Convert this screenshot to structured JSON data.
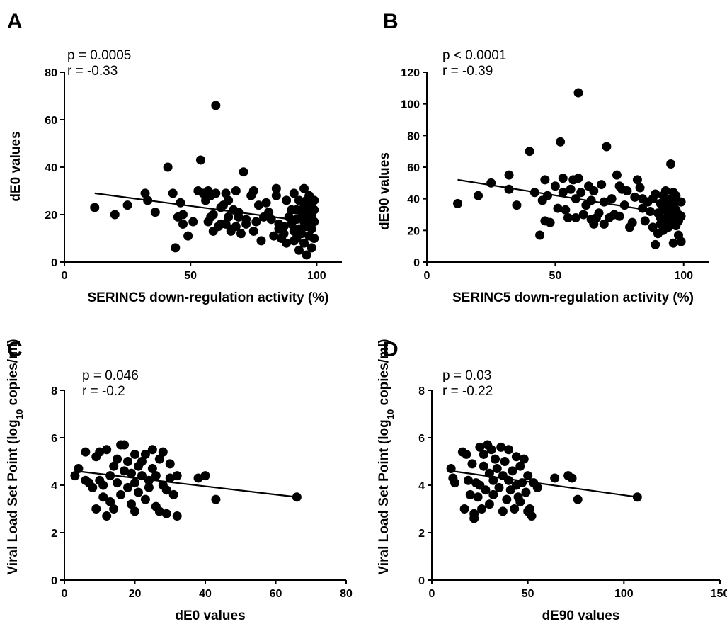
{
  "chart_data": [
    {
      "panel": "A",
      "type": "scatter",
      "stats": {
        "p": "p = 0.0005",
        "r": "r = -0.33"
      },
      "xlabel": "SERINC5 down-regulation activity (%)",
      "ylabel": "dE0 values",
      "xlim": [
        0,
        110
      ],
      "ylim": [
        0,
        80
      ],
      "xticks": [
        0,
        50,
        100
      ],
      "yticks": [
        0,
        20,
        40,
        60,
        80
      ],
      "trend": [
        [
          12,
          29
        ],
        [
          97,
          17
        ]
      ],
      "points": [
        [
          12,
          23
        ],
        [
          20,
          20
        ],
        [
          25,
          24
        ],
        [
          32,
          29
        ],
        [
          33,
          26
        ],
        [
          36,
          21
        ],
        [
          41,
          40
        ],
        [
          43,
          29
        ],
        [
          44,
          6
        ],
        [
          45,
          19
        ],
        [
          46,
          25
        ],
        [
          47,
          16
        ],
        [
          47,
          20
        ],
        [
          49,
          11
        ],
        [
          51,
          17
        ],
        [
          53,
          30
        ],
        [
          54,
          43
        ],
        [
          55,
          29
        ],
        [
          56,
          26
        ],
        [
          57,
          17
        ],
        [
          57,
          30
        ],
        [
          58,
          28
        ],
        [
          58,
          19
        ],
        [
          59,
          13
        ],
        [
          59,
          20
        ],
        [
          60,
          66
        ],
        [
          60,
          29
        ],
        [
          61,
          15
        ],
        [
          62,
          23
        ],
        [
          62,
          16
        ],
        [
          63,
          24
        ],
        [
          64,
          16
        ],
        [
          64,
          29
        ],
        [
          65,
          26
        ],
        [
          65,
          19
        ],
        [
          66,
          13
        ],
        [
          66,
          14
        ],
        [
          67,
          22
        ],
        [
          68,
          30
        ],
        [
          68,
          15
        ],
        [
          69,
          21
        ],
        [
          69,
          19
        ],
        [
          70,
          12
        ],
        [
          71,
          38
        ],
        [
          72,
          18
        ],
        [
          72,
          16
        ],
        [
          74,
          28
        ],
        [
          75,
          30
        ],
        [
          75,
          13
        ],
        [
          76,
          17
        ],
        [
          77,
          24
        ],
        [
          78,
          9
        ],
        [
          79,
          19
        ],
        [
          80,
          25
        ],
        [
          81,
          21
        ],
        [
          82,
          18
        ],
        [
          83,
          11
        ],
        [
          84,
          31
        ],
        [
          84,
          28
        ],
        [
          85,
          16
        ],
        [
          85,
          14
        ],
        [
          86,
          10
        ],
        [
          87,
          15
        ],
        [
          87,
          12
        ],
        [
          88,
          8
        ],
        [
          88,
          26
        ],
        [
          89,
          19
        ],
        [
          90,
          16
        ],
        [
          90,
          22
        ],
        [
          91,
          13
        ],
        [
          91,
          9
        ],
        [
          91,
          29
        ],
        [
          92,
          22
        ],
        [
          92,
          18
        ],
        [
          92,
          10
        ],
        [
          93,
          26
        ],
        [
          93,
          5
        ],
        [
          93,
          14
        ],
        [
          94,
          22
        ],
        [
          94,
          19
        ],
        [
          94,
          12
        ],
        [
          95,
          31
        ],
        [
          95,
          17
        ],
        [
          95,
          23
        ],
        [
          95,
          8
        ],
        [
          96,
          26
        ],
        [
          96,
          21
        ],
        [
          96,
          15
        ],
        [
          96,
          3
        ],
        [
          97,
          28
        ],
        [
          97,
          18
        ],
        [
          97,
          11
        ],
        [
          97,
          24
        ],
        [
          98,
          20
        ],
        [
          98,
          14
        ],
        [
          98,
          6
        ],
        [
          99,
          22
        ],
        [
          99,
          17
        ],
        [
          99,
          10
        ],
        [
          99,
          26
        ]
      ]
    },
    {
      "panel": "B",
      "type": "scatter",
      "stats": {
        "p": "p < 0.0001",
        "r": "r = -0.39"
      },
      "xlabel": "SERINC5 down-regulation activity (%)",
      "ylabel": "dE90 values",
      "xlim": [
        0,
        110
      ],
      "ylim": [
        0,
        120
      ],
      "xticks": [
        0,
        50,
        100
      ],
      "yticks": [
        0,
        20,
        40,
        60,
        80,
        100,
        120
      ],
      "trend": [
        [
          12,
          52
        ],
        [
          97,
          30
        ]
      ],
      "points": [
        [
          12,
          37
        ],
        [
          20,
          42
        ],
        [
          25,
          50
        ],
        [
          32,
          55
        ],
        [
          32,
          46
        ],
        [
          35,
          36
        ],
        [
          40,
          70
        ],
        [
          42,
          44
        ],
        [
          44,
          17
        ],
        [
          45,
          39
        ],
        [
          46,
          52
        ],
        [
          46,
          26
        ],
        [
          47,
          42
        ],
        [
          48,
          25
        ],
        [
          50,
          48
        ],
        [
          51,
          34
        ],
        [
          52,
          76
        ],
        [
          53,
          53
        ],
        [
          53,
          44
        ],
        [
          54,
          33
        ],
        [
          55,
          28
        ],
        [
          56,
          46
        ],
        [
          57,
          52
        ],
        [
          58,
          40
        ],
        [
          58,
          28
        ],
        [
          59,
          107
        ],
        [
          59,
          53
        ],
        [
          60,
          44
        ],
        [
          61,
          30
        ],
        [
          62,
          36
        ],
        [
          63,
          48
        ],
        [
          64,
          27
        ],
        [
          64,
          39
        ],
        [
          65,
          45
        ],
        [
          65,
          24
        ],
        [
          66,
          28
        ],
        [
          67,
          31
        ],
        [
          68,
          49
        ],
        [
          69,
          38
        ],
        [
          69,
          24
        ],
        [
          70,
          73
        ],
        [
          71,
          28
        ],
        [
          72,
          40
        ],
        [
          73,
          30
        ],
        [
          74,
          55
        ],
        [
          75,
          48
        ],
        [
          75,
          29
        ],
        [
          76,
          46
        ],
        [
          77,
          36
        ],
        [
          78,
          45
        ],
        [
          79,
          22
        ],
        [
          80,
          25
        ],
        [
          81,
          41
        ],
        [
          82,
          52
        ],
        [
          83,
          47
        ],
        [
          84,
          34
        ],
        [
          84,
          40
        ],
        [
          85,
          26
        ],
        [
          86,
          38
        ],
        [
          87,
          32
        ],
        [
          88,
          40
        ],
        [
          88,
          22
        ],
        [
          89,
          11
        ],
        [
          89,
          43
        ],
        [
          90,
          31
        ],
        [
          90,
          18
        ],
        [
          91,
          28
        ],
        [
          91,
          24
        ],
        [
          91,
          37
        ],
        [
          92,
          42
        ],
        [
          92,
          33
        ],
        [
          92,
          20
        ],
        [
          93,
          38
        ],
        [
          93,
          27
        ],
        [
          93,
          45
        ],
        [
          94,
          35
        ],
        [
          94,
          29
        ],
        [
          94,
          22
        ],
        [
          95,
          62
        ],
        [
          95,
          40
        ],
        [
          95,
          31
        ],
        [
          95,
          24
        ],
        [
          96,
          44
        ],
        [
          96,
          35
        ],
        [
          96,
          28
        ],
        [
          96,
          12
        ],
        [
          97,
          42
        ],
        [
          97,
          33
        ],
        [
          97,
          23
        ],
        [
          97,
          38
        ],
        [
          98,
          30
        ],
        [
          98,
          26
        ],
        [
          98,
          17
        ],
        [
          99,
          38
        ],
        [
          99,
          29
        ],
        [
          99,
          13
        ]
      ]
    },
    {
      "panel": "C",
      "type": "scatter",
      "stats": {
        "p": "p = 0.046",
        "r": "r = -0.2"
      },
      "xlabel": "dE0 values",
      "ylabel": "Viral Load Set Point (log10 copies/ml)",
      "xlim": [
        0,
        80
      ],
      "ylim": [
        0,
        8
      ],
      "xticks": [
        0,
        20,
        40,
        60,
        80
      ],
      "yticks": [
        0,
        2,
        4,
        6,
        8
      ],
      "trend": [
        [
          3,
          4.6
        ],
        [
          66,
          3.5
        ]
      ],
      "points": [
        [
          3,
          4.4
        ],
        [
          4,
          4.7
        ],
        [
          6,
          5.4
        ],
        [
          6,
          4.2
        ],
        [
          7,
          4.1
        ],
        [
          8,
          3.9
        ],
        [
          9,
          5.2
        ],
        [
          9,
          3.0
        ],
        [
          10,
          4.2
        ],
        [
          10,
          5.4
        ],
        [
          11,
          4.0
        ],
        [
          11,
          3.5
        ],
        [
          12,
          2.7
        ],
        [
          12,
          5.5
        ],
        [
          13,
          4.4
        ],
        [
          13,
          3.3
        ],
        [
          14,
          4.8
        ],
        [
          14,
          3.0
        ],
        [
          15,
          5.1
        ],
        [
          15,
          4.1
        ],
        [
          16,
          5.7
        ],
        [
          16,
          3.6
        ],
        [
          17,
          4.6
        ],
        [
          17,
          5.7
        ],
        [
          18,
          3.9
        ],
        [
          18,
          5.0
        ],
        [
          19,
          4.5
        ],
        [
          19,
          3.2
        ],
        [
          20,
          5.3
        ],
        [
          20,
          4.1
        ],
        [
          20,
          2.9
        ],
        [
          21,
          4.8
        ],
        [
          21,
          3.7
        ],
        [
          22,
          5.0
        ],
        [
          22,
          4.4
        ],
        [
          23,
          3.4
        ],
        [
          23,
          5.3
        ],
        [
          24,
          4.2
        ],
        [
          24,
          3.9
        ],
        [
          25,
          5.5
        ],
        [
          25,
          4.7
        ],
        [
          26,
          3.1
        ],
        [
          26,
          4.4
        ],
        [
          27,
          5.1
        ],
        [
          27,
          2.9
        ],
        [
          28,
          4.0
        ],
        [
          28,
          5.4
        ],
        [
          29,
          3.8
        ],
        [
          29,
          2.8
        ],
        [
          30,
          4.3
        ],
        [
          30,
          4.9
        ],
        [
          31,
          3.6
        ],
        [
          32,
          2.7
        ],
        [
          32,
          4.4
        ],
        [
          38,
          4.3
        ],
        [
          40,
          4.4
        ],
        [
          43,
          3.4
        ],
        [
          66,
          3.5
        ]
      ]
    },
    {
      "panel": "D",
      "type": "scatter",
      "stats": {
        "p": "p = 0.03",
        "r": "r = -0.22"
      },
      "xlabel": "dE90 values",
      "ylabel": "Viral Load Set Point (log10 copies/ml)",
      "xlim": [
        0,
        150
      ],
      "ylim": [
        0,
        8
      ],
      "xticks": [
        0,
        50,
        100,
        150
      ],
      "yticks": [
        0,
        2,
        4,
        6,
        8
      ],
      "trend": [
        [
          10,
          4.6
        ],
        [
          107,
          3.5
        ]
      ],
      "points": [
        [
          10,
          4.7
        ],
        [
          11,
          4.3
        ],
        [
          12,
          4.1
        ],
        [
          16,
          5.4
        ],
        [
          17,
          3.0
        ],
        [
          18,
          5.3
        ],
        [
          19,
          4.2
        ],
        [
          20,
          3.6
        ],
        [
          21,
          4.9
        ],
        [
          22,
          2.8
        ],
        [
          22,
          2.6
        ],
        [
          23,
          4.1
        ],
        [
          24,
          3.5
        ],
        [
          25,
          5.6
        ],
        [
          25,
          4.0
        ],
        [
          26,
          3.0
        ],
        [
          27,
          5.3
        ],
        [
          27,
          4.8
        ],
        [
          28,
          3.8
        ],
        [
          29,
          5.7
        ],
        [
          30,
          4.5
        ],
        [
          30,
          3.2
        ],
        [
          31,
          5.5
        ],
        [
          32,
          4.2
        ],
        [
          32,
          3.6
        ],
        [
          33,
          5.1
        ],
        [
          34,
          4.7
        ],
        [
          35,
          3.9
        ],
        [
          36,
          5.6
        ],
        [
          37,
          4.4
        ],
        [
          37,
          2.9
        ],
        [
          38,
          5.0
        ],
        [
          39,
          3.4
        ],
        [
          40,
          4.2
        ],
        [
          40,
          5.5
        ],
        [
          41,
          3.8
        ],
        [
          42,
          4.6
        ],
        [
          43,
          3.0
        ],
        [
          44,
          5.2
        ],
        [
          44,
          4.0
        ],
        [
          45,
          3.5
        ],
        [
          46,
          4.8
        ],
        [
          46,
          3.3
        ],
        [
          47,
          4.1
        ],
        [
          48,
          5.1
        ],
        [
          49,
          3.7
        ],
        [
          50,
          2.9
        ],
        [
          50,
          4.4
        ],
        [
          51,
          3.0
        ],
        [
          52,
          2.7
        ],
        [
          53,
          4.1
        ],
        [
          55,
          3.9
        ],
        [
          64,
          4.3
        ],
        [
          71,
          4.4
        ],
        [
          73,
          4.3
        ],
        [
          76,
          3.4
        ],
        [
          107,
          3.5
        ]
      ]
    }
  ]
}
